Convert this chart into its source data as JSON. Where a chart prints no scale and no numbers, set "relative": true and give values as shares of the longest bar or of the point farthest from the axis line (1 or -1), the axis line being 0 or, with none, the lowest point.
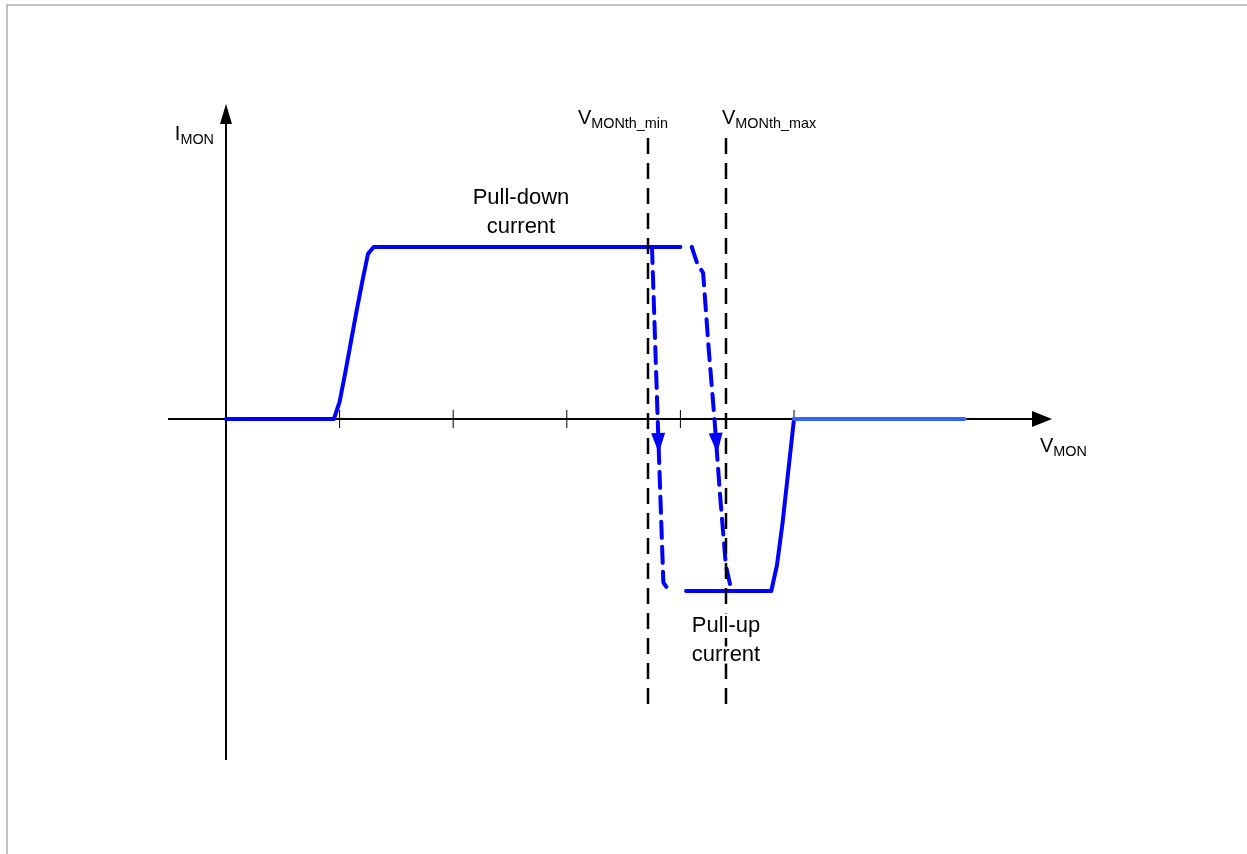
{
  "chart_data": {
    "type": "line",
    "relative": true,
    "xlabel": "V$_{MON}$",
    "grid": false,
    "marker": "none",
    "categories": [
      null,
      null,
      null,
      null,
      null,
      null,
      null,
      null,
      null,
      null,
      null,
      null,
      null,
      null,
      null,
      null,
      null,
      null,
      null,
      null,
      null,
      null,
      null,
      null,
      null,
      null,
      null,
      null,
      null,
      null,
      null,
      null,
      null,
      null,
      null,
      null,
      null,
      null,
      null,
      null,
      null,
      null,
      null,
      null,
      null,
      null,
      null,
      null,
      null,
      null,
      null,
      null,
      null,
      null,
      null,
      null,
      null,
      null,
      null,
      null,
      null,
      null,
      null,
      null,
      null,
      null,
      null,
      null,
      null,
      null,
      null,
      null,
      null,
      null,
      null,
      null,
      null,
      null,
      null,
      null,
      null,
      null,
      null,
      null,
      null,
      null,
      null,
      null,
      null,
      null,
      null,
      null,
      null,
      null,
      null,
      null,
      null,
      null,
      null,
      null,
      null,
      null,
      null,
      null,
      null,
      null,
      null,
      null,
      null,
      null,
      null,
      null,
      null,
      null,
      null,
      null,
      null,
      null,
      null,
      null,
      null,
      null,
      null,
      null,
      null,
      null,
      null,
      null,
      null,
      null,
      null
    ],
    "series": [
      {
        "color": "#0000ff",
        "line_style": "solid",
        "values": [
          0,
          0,
          0,
          0,
          0,
          0,
          0,
          0,
          0,
          0,
          0,
          0,
          0,
          0,
          0,
          0,
          0,
          0,
          0,
          0,
          0.1,
          0.27,
          0.45,
          0.63,
          0.8,
          0.96,
          1,
          1,
          1,
          1,
          1,
          1,
          1,
          1,
          1,
          1,
          1,
          1,
          1,
          1,
          1,
          1,
          1,
          1,
          1,
          1,
          1,
          1,
          1,
          1,
          1,
          1,
          1,
          1,
          1,
          1,
          1,
          1,
          1,
          1,
          1,
          1,
          1,
          1,
          1,
          1,
          1,
          1,
          1,
          1,
          1,
          1,
          1,
          1,
          1,
          1,
          1,
          1,
          1,
          1,
          1,
          null,
          null,
          null,
          null,
          null,
          null,
          null,
          null,
          null,
          null,
          null,
          null,
          null,
          null,
          null,
          null,
          null,
          null,
          null,
          null,
          null,
          null,
          null,
          null,
          null,
          null,
          null,
          null,
          null,
          null,
          null,
          null,
          null,
          null,
          null,
          null,
          null,
          null,
          null,
          null,
          null,
          null,
          null,
          null,
          null,
          null,
          null,
          null,
          null,
          null
        ]
      },
      {
        "color": "#0000ff",
        "line_style": "dashed",
        "values": [
          null,
          null,
          null,
          null,
          null,
          null,
          null,
          null,
          null,
          null,
          null,
          null,
          null,
          null,
          null,
          null,
          null,
          null,
          null,
          null,
          null,
          null,
          null,
          null,
          null,
          null,
          null,
          null,
          null,
          null,
          null,
          null,
          null,
          null,
          null,
          null,
          null,
          null,
          null,
          null,
          null,
          null,
          null,
          null,
          null,
          null,
          null,
          null,
          null,
          null,
          null,
          null,
          null,
          null,
          null,
          null,
          null,
          null,
          null,
          null,
          null,
          null,
          null,
          null,
          null,
          null,
          null,
          null,
          null,
          null,
          null,
          null,
          null,
          null,
          null,
          1,
          0,
          -0.95,
          -1,
          null,
          null,
          null,
          null,
          null,
          null,
          null,
          null,
          null,
          null,
          null,
          null,
          null,
          null,
          null,
          null,
          null,
          null,
          null,
          null,
          null,
          null,
          null,
          null,
          null,
          null,
          null,
          null,
          null,
          null,
          null,
          null,
          null,
          null,
          null,
          null,
          null,
          null,
          null,
          null,
          null,
          null,
          null,
          null,
          null,
          null,
          null,
          null,
          null,
          null,
          null,
          null
        ]
      },
      {
        "color": "#0000ff",
        "line_style": "dashed",
        "values": [
          null,
          null,
          null,
          null,
          null,
          null,
          null,
          null,
          null,
          null,
          null,
          null,
          null,
          null,
          null,
          null,
          null,
          null,
          null,
          null,
          null,
          null,
          null,
          null,
          null,
          null,
          null,
          null,
          null,
          null,
          null,
          null,
          null,
          null,
          null,
          null,
          null,
          null,
          null,
          null,
          null,
          null,
          null,
          null,
          null,
          null,
          null,
          null,
          null,
          null,
          null,
          null,
          null,
          null,
          null,
          null,
          null,
          null,
          null,
          null,
          null,
          null,
          null,
          null,
          null,
          null,
          null,
          null,
          null,
          null,
          null,
          null,
          null,
          null,
          null,
          null,
          null,
          null,
          null,
          null,
          null,
          null,
          1,
          0.9,
          0.85,
          0.4,
          0,
          -0.45,
          -0.85,
          -1,
          null,
          null,
          null,
          null,
          null,
          null,
          null,
          null,
          null,
          null,
          null,
          null,
          null,
          null,
          null,
          null,
          null,
          null,
          null,
          null,
          null,
          null,
          null,
          null,
          null,
          null,
          null,
          null,
          null,
          null,
          null,
          null,
          null,
          null,
          null,
          null,
          null,
          null,
          null,
          null,
          null
        ]
      },
      {
        "color": "#0000ff",
        "line_style": "solid",
        "values": [
          null,
          null,
          null,
          null,
          null,
          null,
          null,
          null,
          null,
          null,
          null,
          null,
          null,
          null,
          null,
          null,
          null,
          null,
          null,
          null,
          null,
          null,
          null,
          null,
          null,
          null,
          null,
          null,
          null,
          null,
          null,
          null,
          null,
          null,
          null,
          null,
          null,
          null,
          null,
          null,
          null,
          null,
          null,
          null,
          null,
          null,
          null,
          null,
          null,
          null,
          null,
          null,
          null,
          null,
          null,
          null,
          null,
          null,
          null,
          null,
          null,
          null,
          null,
          null,
          null,
          null,
          null,
          null,
          null,
          null,
          null,
          null,
          null,
          null,
          null,
          null,
          null,
          null,
          null,
          null,
          null,
          -1,
          -1,
          -1,
          -1,
          -1,
          -1,
          -1,
          -1,
          -1,
          -1,
          -1,
          -1,
          -1,
          -1,
          -1,
          -1,
          -0.85,
          -0.6,
          -0.3,
          0,
          null,
          null,
          null,
          null,
          null,
          null,
          null,
          null,
          null,
          null,
          null,
          null,
          null,
          null,
          null,
          null,
          null,
          null,
          null,
          null,
          null,
          null,
          null,
          null,
          null,
          null,
          null,
          null,
          null,
          null
        ]
      },
      {
        "color": "#3366ff",
        "line_style": "solid",
        "values": [
          null,
          null,
          null,
          null,
          null,
          null,
          null,
          null,
          null,
          null,
          null,
          null,
          null,
          null,
          null,
          null,
          null,
          null,
          null,
          null,
          null,
          null,
          null,
          null,
          null,
          null,
          null,
          null,
          null,
          null,
          null,
          null,
          null,
          null,
          null,
          null,
          null,
          null,
          null,
          null,
          null,
          null,
          null,
          null,
          null,
          null,
          null,
          null,
          null,
          null,
          null,
          null,
          null,
          null,
          null,
          null,
          null,
          null,
          null,
          null,
          null,
          null,
          null,
          null,
          null,
          null,
          null,
          null,
          null,
          null,
          null,
          null,
          null,
          null,
          null,
          null,
          null,
          null,
          null,
          null,
          null,
          null,
          null,
          null,
          null,
          null,
          null,
          null,
          null,
          null,
          null,
          null,
          null,
          null,
          null,
          null,
          null,
          null,
          null,
          null,
          0,
          0,
          0,
          0,
          0,
          0,
          0,
          0,
          0,
          0,
          0,
          0,
          0,
          0,
          0,
          0,
          0,
          0,
          0,
          0,
          0,
          0,
          0,
          0,
          0,
          0,
          0,
          0,
          0,
          0,
          0
        ]
      }
    ],
    "annotations": [
      "V$_{MONth_min}$",
      "V$_{MONth_max}$",
      "Pull-down current",
      "Pull-up current",
      "I$_{MON}$"
    ]
  }
}
